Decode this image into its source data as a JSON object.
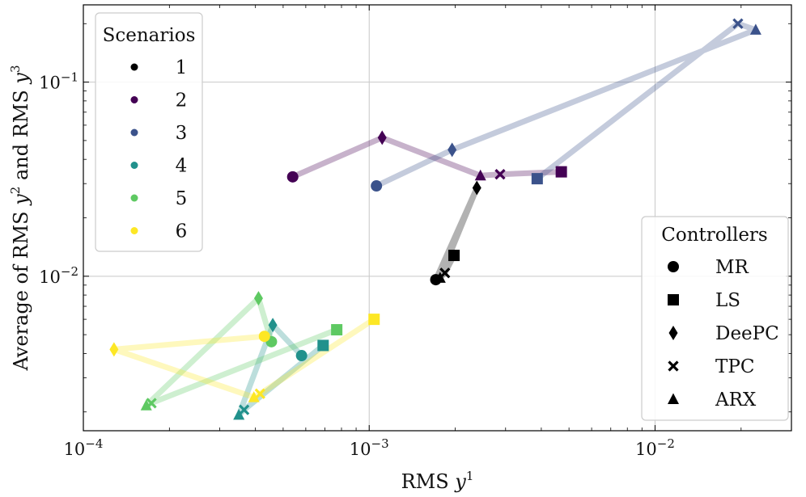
{
  "chart_data": {
    "type": "scatter",
    "xscale": "log",
    "yscale": "log",
    "xlabel": {
      "base": "RMS ",
      "var": "y",
      "sup": "1"
    },
    "ylabel": {
      "part1": "Average of RMS ",
      "var1": "y",
      "sup1": "2",
      "part2": " and RMS ",
      "var2": "y",
      "sup2": "3"
    },
    "xlim": [
      0.0001,
      0.03
    ],
    "ylim": [
      0.0016,
      0.25
    ],
    "x_ticks": [
      {
        "value": 0.0001,
        "base": "10",
        "exp": "−4"
      },
      {
        "value": 0.001,
        "base": "10",
        "exp": "−3"
      },
      {
        "value": 0.01,
        "base": "10",
        "exp": "−2"
      }
    ],
    "y_ticks": [
      {
        "value": 0.01,
        "base": "10",
        "exp": "−2"
      },
      {
        "value": 0.1,
        "base": "10",
        "exp": "−1"
      }
    ],
    "grid": true,
    "scenario_legend": {
      "title": "Scenarios",
      "position": "upper-left",
      "entries": [
        {
          "label": "1",
          "color": "#000000"
        },
        {
          "label": "2",
          "color": "#440154"
        },
        {
          "label": "3",
          "color": "#3b528b"
        },
        {
          "label": "4",
          "color": "#21918c"
        },
        {
          "label": "5",
          "color": "#5ec962"
        },
        {
          "label": "6",
          "color": "#fde725"
        }
      ]
    },
    "controller_legend": {
      "title": "Controllers",
      "position": "lower-right",
      "entries": [
        {
          "label": "MR",
          "marker": "circle"
        },
        {
          "label": "LS",
          "marker": "square"
        },
        {
          "label": "DeePC",
          "marker": "diamond"
        },
        {
          "label": "TPC",
          "marker": "x"
        },
        {
          "label": "ARX",
          "marker": "triangle"
        }
      ]
    },
    "series": [
      {
        "name": "1",
        "color": "#000000",
        "points": [
          {
            "controller": "MR",
            "x": 0.00171,
            "y": 0.0096
          },
          {
            "controller": "LS",
            "x": 0.00198,
            "y": 0.0128
          },
          {
            "controller": "DeePC",
            "x": 0.00238,
            "y": 0.0285
          },
          {
            "controller": "TPC",
            "x": 0.00184,
            "y": 0.0104
          },
          {
            "controller": "ARX",
            "x": 0.00177,
            "y": 0.0098
          }
        ]
      },
      {
        "name": "2",
        "color": "#440154",
        "points": [
          {
            "controller": "MR",
            "x": 0.00054,
            "y": 0.0325
          },
          {
            "controller": "LS",
            "x": 0.0047,
            "y": 0.0345
          },
          {
            "controller": "DeePC",
            "x": 0.00111,
            "y": 0.0517
          },
          {
            "controller": "TPC",
            "x": 0.00287,
            "y": 0.0335
          },
          {
            "controller": "ARX",
            "x": 0.00245,
            "y": 0.033
          }
        ]
      },
      {
        "name": "3",
        "color": "#3b528b",
        "points": [
          {
            "controller": "MR",
            "x": 0.00106,
            "y": 0.0292
          },
          {
            "controller": "LS",
            "x": 0.00387,
            "y": 0.0318
          },
          {
            "controller": "DeePC",
            "x": 0.00195,
            "y": 0.0448
          },
          {
            "controller": "TPC",
            "x": 0.0195,
            "y": 0.2
          },
          {
            "controller": "ARX",
            "x": 0.0225,
            "y": 0.186
          }
        ]
      },
      {
        "name": "4",
        "color": "#21918c",
        "points": [
          {
            "controller": "MR",
            "x": 0.00058,
            "y": 0.0039
          },
          {
            "controller": "LS",
            "x": 0.00069,
            "y": 0.0044
          },
          {
            "controller": "DeePC",
            "x": 0.00046,
            "y": 0.0056
          },
          {
            "controller": "TPC",
            "x": 0.000365,
            "y": 0.00205
          },
          {
            "controller": "ARX",
            "x": 0.00035,
            "y": 0.00193
          }
        ]
      },
      {
        "name": "5",
        "color": "#5ec962",
        "points": [
          {
            "controller": "MR",
            "x": 0.000455,
            "y": 0.0046
          },
          {
            "controller": "LS",
            "x": 0.00077,
            "y": 0.0053
          },
          {
            "controller": "DeePC",
            "x": 0.00041,
            "y": 0.0077
          },
          {
            "controller": "TPC",
            "x": 0.000173,
            "y": 0.00222
          },
          {
            "controller": "ARX",
            "x": 0.000166,
            "y": 0.00216
          }
        ]
      },
      {
        "name": "6",
        "color": "#fde725",
        "points": [
          {
            "controller": "MR",
            "x": 0.00043,
            "y": 0.0049
          },
          {
            "controller": "LS",
            "x": 0.00104,
            "y": 0.006
          },
          {
            "controller": "DeePC",
            "x": 0.000128,
            "y": 0.0042
          },
          {
            "controller": "TPC",
            "x": 0.000415,
            "y": 0.00248
          },
          {
            "controller": "ARX",
            "x": 0.000395,
            "y": 0.00238
          }
        ]
      }
    ]
  }
}
